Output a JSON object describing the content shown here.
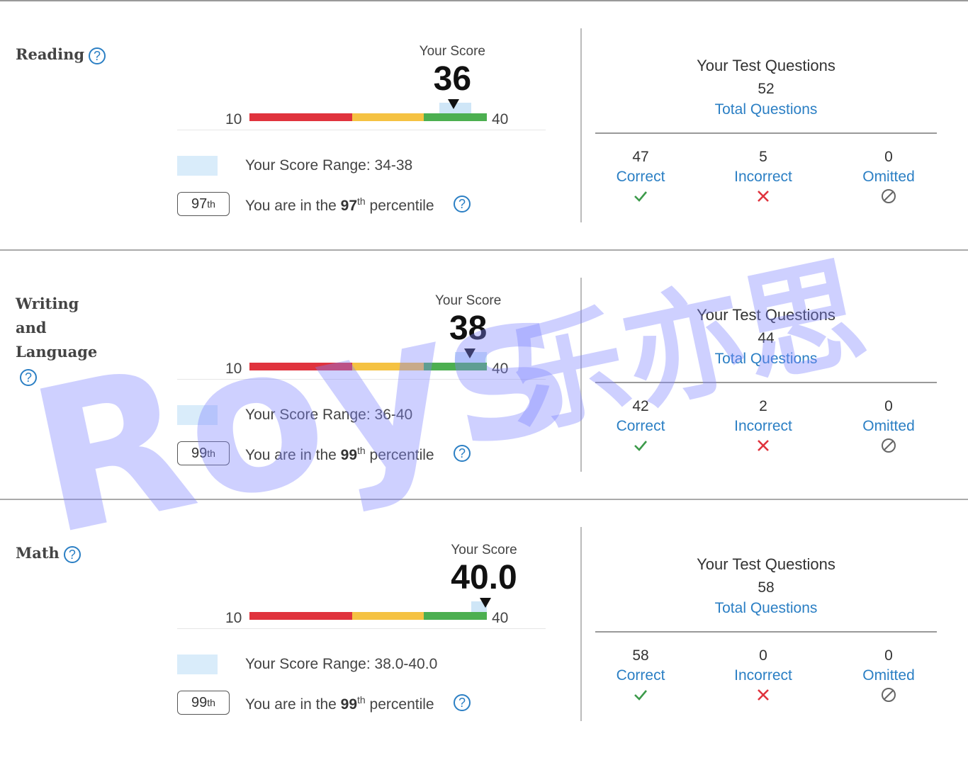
{
  "colors": {
    "red": "#e0333d",
    "yellow": "#f5c242",
    "green": "#4caf50",
    "accent": "#2b7fc4",
    "range": "#cfe6f7"
  },
  "icons": {
    "help": "question-circle-icon",
    "correct": "check-icon",
    "incorrect": "x-icon",
    "omitted": "slash-circle-icon"
  },
  "help_glyph": "?",
  "sections": [
    {
      "title": "Reading",
      "your_score_label": "Your Score",
      "score": "36",
      "score_value": 36,
      "range_low": 34,
      "range_high": 38,
      "axis_min": "10",
      "axis_max": "40",
      "range_text": "Your Score Range: 34-38",
      "percentile": "97",
      "percentile_sup": "th",
      "pct_prefix": "You are in the ",
      "pct_suffix": " percentile",
      "questions": {
        "title": "Your Test Questions",
        "total": "52",
        "total_label": "Total Questions",
        "correct": "47",
        "correct_label": "Correct",
        "incorrect": "5",
        "incorrect_label": "Incorrect",
        "omitted": "0",
        "omitted_label": "Omitted"
      }
    },
    {
      "title": "Writing and Language",
      "your_score_label": "Your Score",
      "score": "38",
      "score_value": 38,
      "range_low": 36,
      "range_high": 40,
      "axis_min": "10",
      "axis_max": "40",
      "range_text": "Your Score Range: 36-40",
      "percentile": "99",
      "percentile_sup": "th",
      "pct_prefix": "You are in the ",
      "pct_suffix": " percentile",
      "questions": {
        "title": "Your Test Questions",
        "total": "44",
        "total_label": "Total Questions",
        "correct": "42",
        "correct_label": "Correct",
        "incorrect": "2",
        "incorrect_label": "Incorrect",
        "omitted": "0",
        "omitted_label": "Omitted"
      }
    },
    {
      "title": "Math",
      "your_score_label": "Your Score",
      "score": "40.0",
      "score_value": 40,
      "range_low": 38,
      "range_high": 40,
      "axis_min": "10",
      "axis_max": "40",
      "range_text": "Your Score Range: 38.0-40.0",
      "percentile": "99",
      "percentile_sup": "th",
      "pct_prefix": "You are in the ",
      "pct_suffix": " percentile",
      "questions": {
        "title": "Your Test Questions",
        "total": "58",
        "total_label": "Total Questions",
        "correct": "58",
        "correct_label": "Correct",
        "incorrect": "0",
        "incorrect_label": "Incorrect",
        "omitted": "0",
        "omitted_label": "Omitted"
      }
    }
  ],
  "watermark": {
    "latin": "Roys",
    "cjk": "乐亦思"
  }
}
